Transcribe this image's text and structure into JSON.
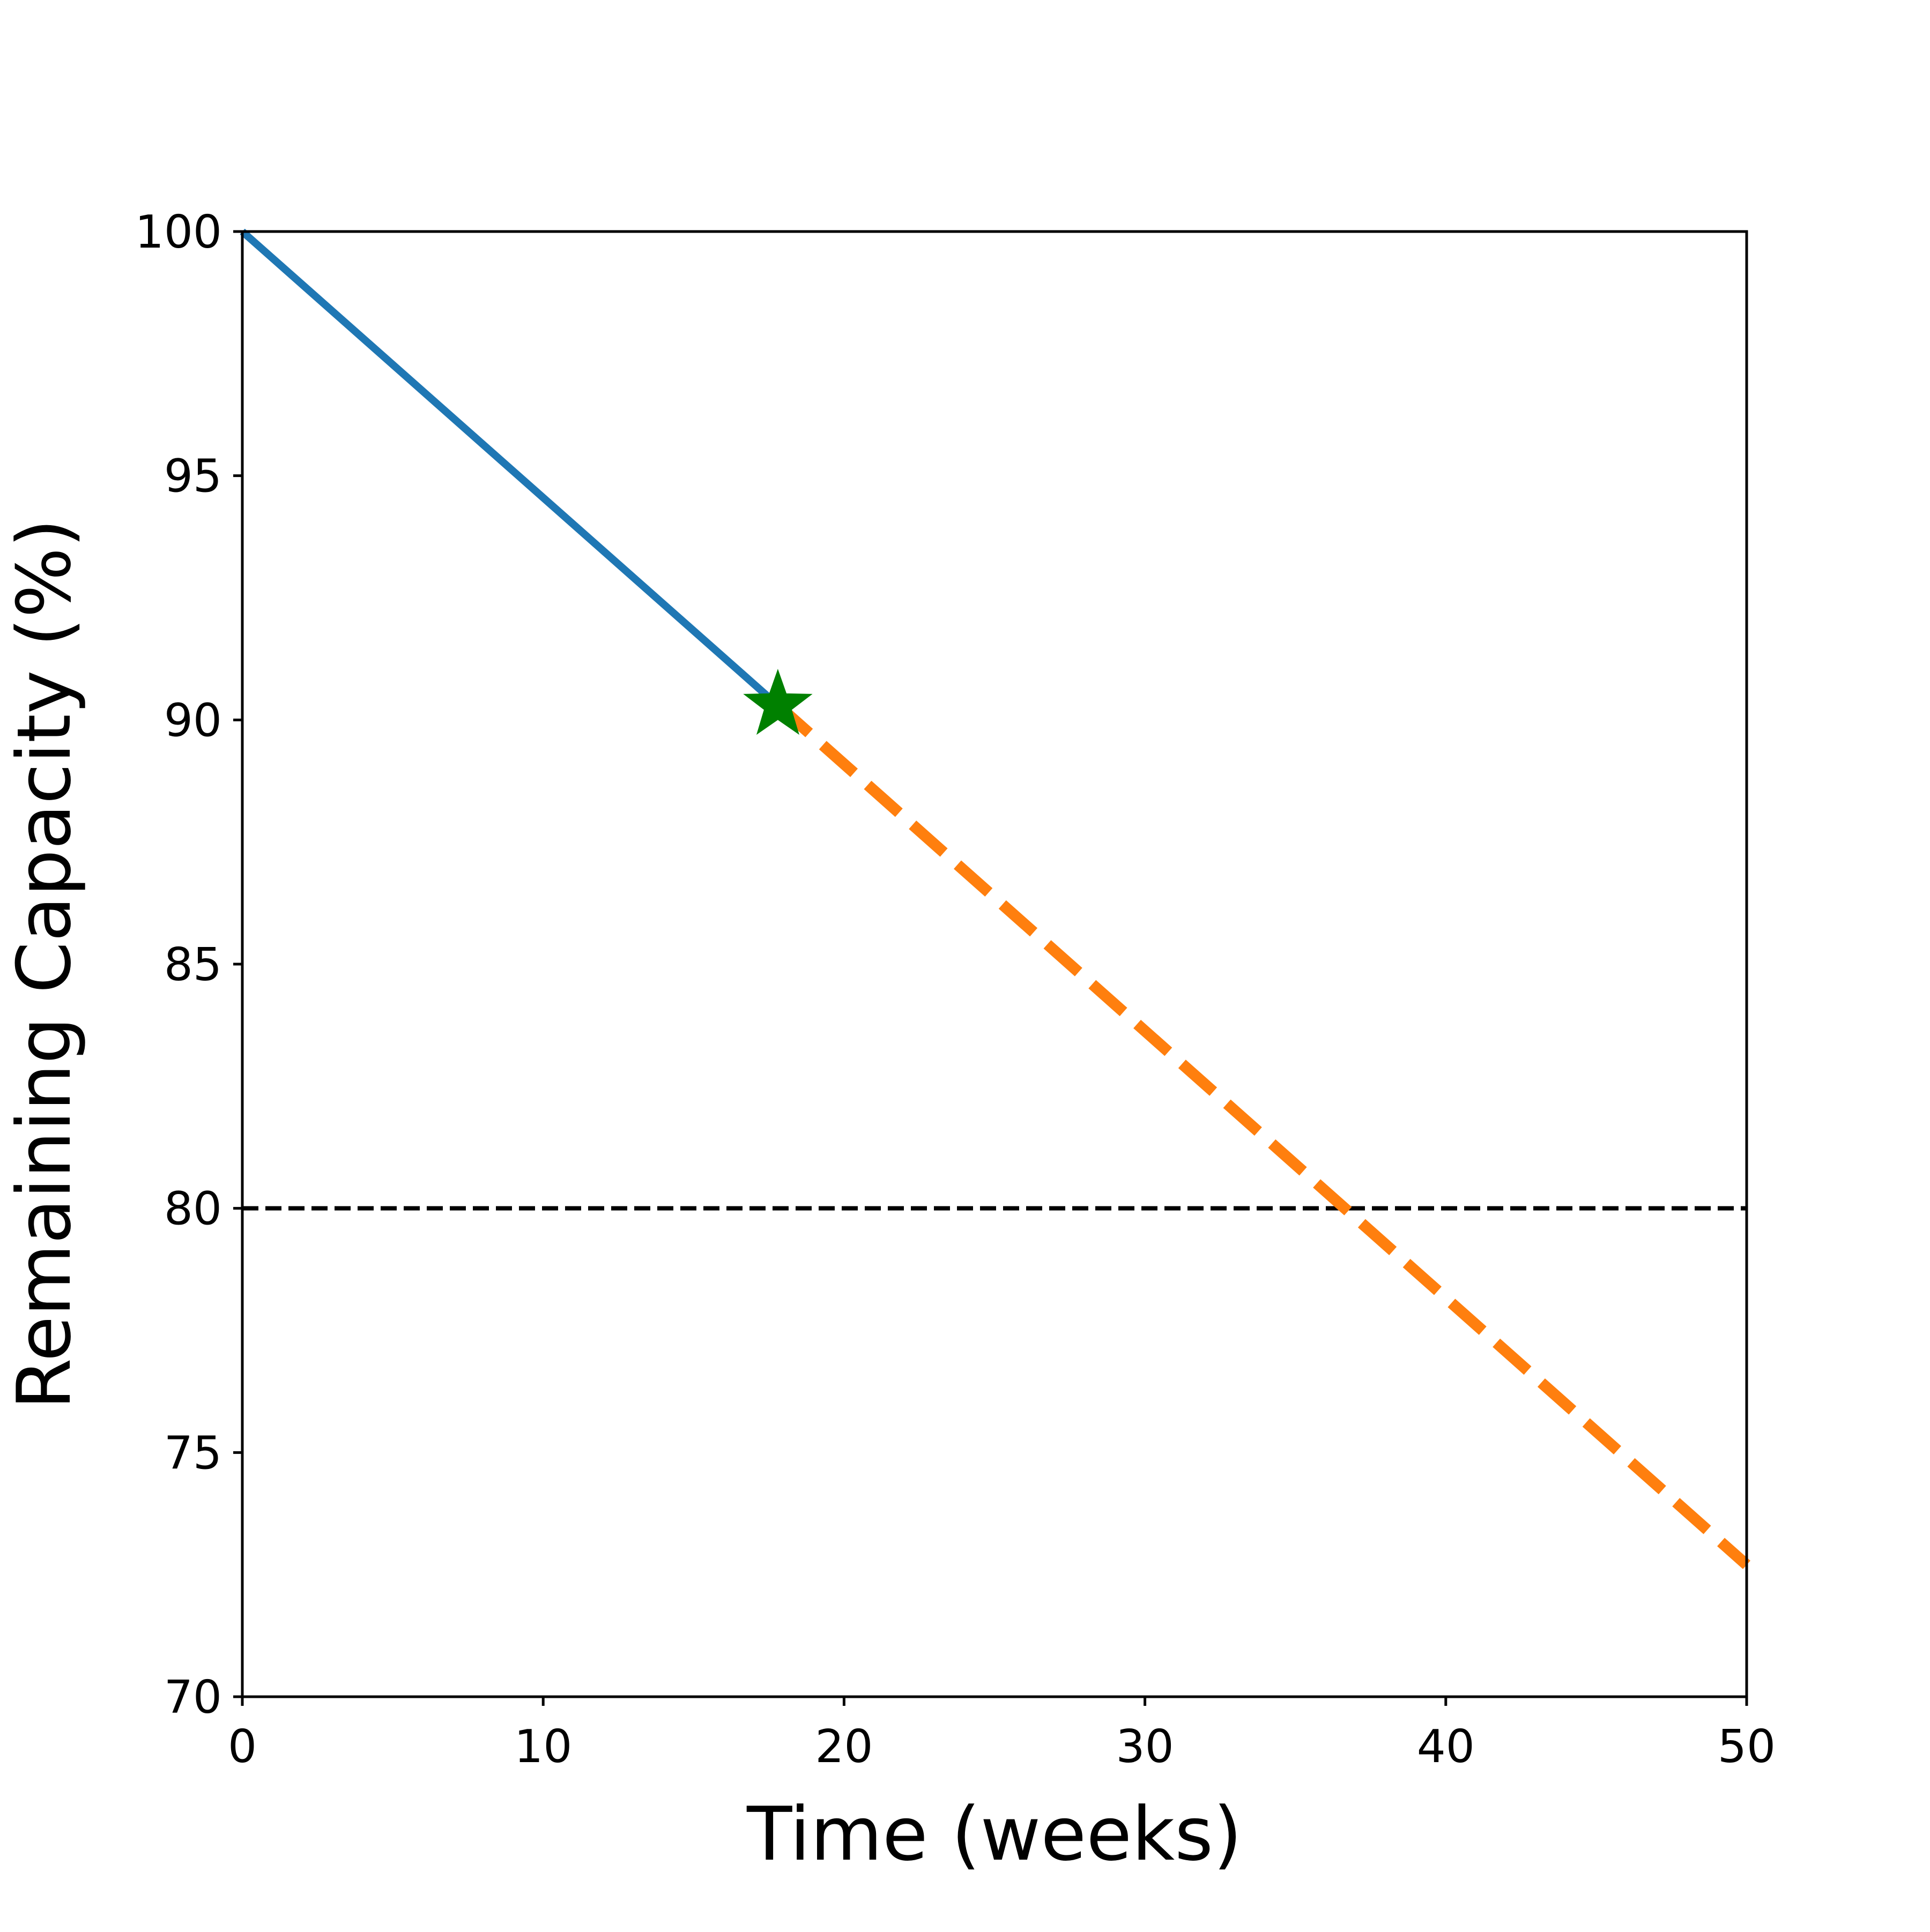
{
  "chart_data": {
    "type": "line",
    "title": "",
    "xlabel": "Time (weeks)",
    "ylabel": "Remaining Capacity (%)",
    "xlim": [
      0,
      50
    ],
    "ylim": [
      70,
      100
    ],
    "xticks": [
      0,
      10,
      20,
      30,
      40,
      50
    ],
    "yticks": [
      70,
      75,
      80,
      85,
      90,
      95,
      100
    ],
    "xtick_labels": [
      "0",
      "10",
      "20",
      "30",
      "40",
      "50"
    ],
    "ytick_labels": [
      "70",
      "75",
      "80",
      "85",
      "90",
      "95",
      "100"
    ],
    "grid": false,
    "legend": "none",
    "series": [
      {
        "style": "solid",
        "color": "#1f77b4",
        "x": [
          0,
          17.8
        ],
        "y": [
          100,
          90.3
        ]
      },
      {
        "style": "dashed",
        "color": "#ff7f0e",
        "x": [
          17.8,
          50
        ],
        "y": [
          90.3,
          72.7
        ]
      }
    ],
    "markers": [
      {
        "shape": "star",
        "color": "#008000",
        "x": 17.8,
        "y": 90.3
      }
    ],
    "reference_lines": [
      {
        "orientation": "horizontal",
        "y": 80,
        "style": "dashed",
        "color": "#000000"
      }
    ]
  }
}
